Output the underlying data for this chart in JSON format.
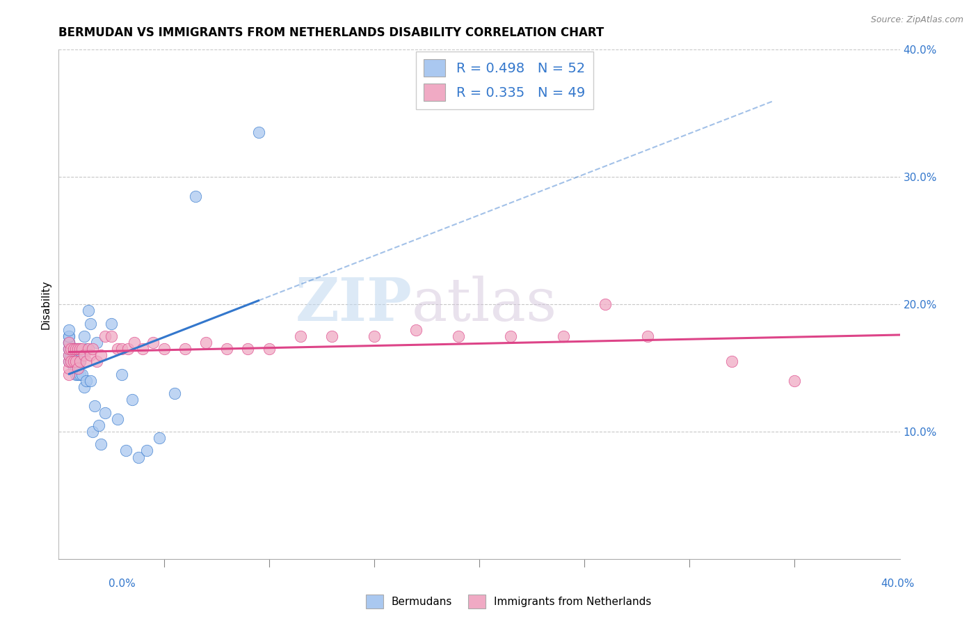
{
  "title": "BERMUDAN VS IMMIGRANTS FROM NETHERLANDS DISABILITY CORRELATION CHART",
  "source": "Source: ZipAtlas.com",
  "xlabel": "",
  "ylabel": "Disability",
  "legend_label1": "Bermudans",
  "legend_label2": "Immigrants from Netherlands",
  "r1": 0.498,
  "n1": 52,
  "r2": 0.335,
  "n2": 49,
  "xlim": [
    0.0,
    0.4
  ],
  "ylim": [
    0.0,
    0.4
  ],
  "xticks_minor": [
    0.05,
    0.1,
    0.15,
    0.2,
    0.25,
    0.3,
    0.35
  ],
  "yticks": [
    0.1,
    0.2,
    0.3,
    0.4
  ],
  "yticklabels": [
    "10.0%",
    "20.0%",
    "30.0%",
    "40.0%"
  ],
  "color1": "#aac8f0",
  "color2": "#f0aac4",
  "line_color1": "#3377cc",
  "line_color2": "#dd4488",
  "watermark_zip": "ZIP",
  "watermark_atlas": "atlas",
  "background_color": "#ffffff",
  "grid_color": "#c8c8c8",
  "scatter1_x": [
    0.005,
    0.005,
    0.005,
    0.005,
    0.005,
    0.005,
    0.005,
    0.005,
    0.005,
    0.005,
    0.006,
    0.006,
    0.007,
    0.007,
    0.007,
    0.008,
    0.008,
    0.008,
    0.008,
    0.009,
    0.009,
    0.009,
    0.009,
    0.01,
    0.01,
    0.01,
    0.011,
    0.011,
    0.012,
    0.012,
    0.013,
    0.013,
    0.014,
    0.015,
    0.015,
    0.016,
    0.017,
    0.018,
    0.019,
    0.02,
    0.022,
    0.025,
    0.028,
    0.03,
    0.032,
    0.035,
    0.038,
    0.042,
    0.048,
    0.055,
    0.065,
    0.095
  ],
  "scatter1_y": [
    0.155,
    0.16,
    0.165,
    0.165,
    0.17,
    0.17,
    0.17,
    0.175,
    0.175,
    0.18,
    0.155,
    0.16,
    0.15,
    0.155,
    0.165,
    0.145,
    0.15,
    0.155,
    0.165,
    0.145,
    0.15,
    0.155,
    0.165,
    0.145,
    0.155,
    0.165,
    0.145,
    0.16,
    0.135,
    0.175,
    0.14,
    0.165,
    0.195,
    0.14,
    0.185,
    0.1,
    0.12,
    0.17,
    0.105,
    0.09,
    0.115,
    0.185,
    0.11,
    0.145,
    0.085,
    0.125,
    0.08,
    0.085,
    0.095,
    0.13,
    0.285,
    0.335
  ],
  "scatter2_x": [
    0.005,
    0.005,
    0.005,
    0.005,
    0.005,
    0.005,
    0.006,
    0.006,
    0.007,
    0.007,
    0.008,
    0.008,
    0.009,
    0.009,
    0.01,
    0.01,
    0.011,
    0.012,
    0.013,
    0.014,
    0.015,
    0.016,
    0.018,
    0.02,
    0.022,
    0.025,
    0.028,
    0.03,
    0.033,
    0.036,
    0.04,
    0.045,
    0.05,
    0.06,
    0.07,
    0.08,
    0.09,
    0.1,
    0.115,
    0.13,
    0.15,
    0.17,
    0.19,
    0.215,
    0.24,
    0.26,
    0.28,
    0.32,
    0.35
  ],
  "scatter2_y": [
    0.145,
    0.15,
    0.155,
    0.16,
    0.165,
    0.17,
    0.155,
    0.165,
    0.155,
    0.165,
    0.155,
    0.165,
    0.15,
    0.165,
    0.155,
    0.165,
    0.165,
    0.16,
    0.155,
    0.165,
    0.16,
    0.165,
    0.155,
    0.16,
    0.175,
    0.175,
    0.165,
    0.165,
    0.165,
    0.17,
    0.165,
    0.17,
    0.165,
    0.165,
    0.17,
    0.165,
    0.165,
    0.165,
    0.175,
    0.175,
    0.175,
    0.18,
    0.175,
    0.175,
    0.175,
    0.2,
    0.175,
    0.155,
    0.14
  ],
  "title_fontsize": 12,
  "axis_fontsize": 11,
  "tick_fontsize": 11,
  "legend_fontsize": 14
}
